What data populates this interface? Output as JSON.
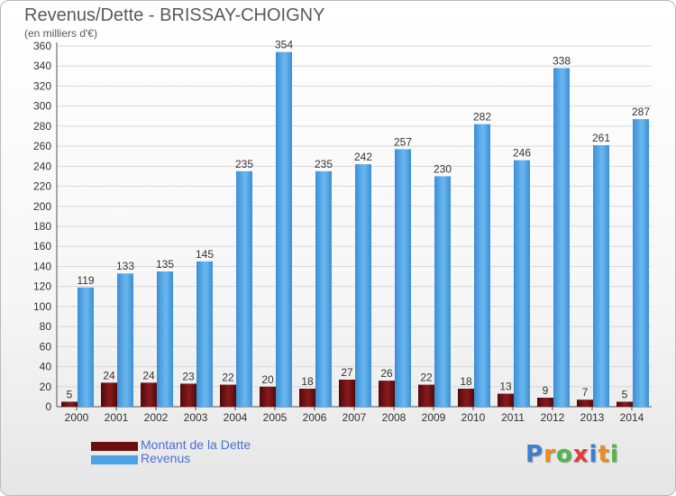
{
  "header": {
    "title": "Revenus/Dette - BRISSAY-CHOIGNY",
    "subtitle": "(en milliers d'€)"
  },
  "legend": {
    "items": [
      {
        "label": "Montant de la Dette",
        "color": "#6b0f10"
      },
      {
        "label": "Revenus",
        "color": "#4aa3e6"
      }
    ]
  },
  "logo": {
    "text": "Proxiti",
    "letters": [
      {
        "char": "P",
        "color": "#3a7fd1"
      },
      {
        "char": "r",
        "color": "#f08a1c"
      },
      {
        "char": "o",
        "color": "#4fb84a"
      },
      {
        "char": "x",
        "color": "#e23b3b"
      },
      {
        "char": "i",
        "color": "#3a7fd1"
      },
      {
        "char": "t",
        "color": "#f08a1c"
      },
      {
        "char": "i",
        "color": "#4fb84a"
      }
    ]
  },
  "chart_data": {
    "type": "bar",
    "title": "Revenus/Dette - BRISSAY-CHOIGNY",
    "subtitle": "(en milliers d'€)",
    "categories": [
      "2000",
      "2001",
      "2002",
      "2003",
      "2004",
      "2005",
      "2006",
      "2007",
      "2008",
      "2009",
      "2010",
      "2011",
      "2012",
      "2013",
      "2014"
    ],
    "series": [
      {
        "name": "Montant de la Dette",
        "color": "#6b0f10",
        "values": [
          5,
          24,
          24,
          23,
          22,
          20,
          18,
          27,
          26,
          22,
          18,
          13,
          9,
          7,
          5
        ]
      },
      {
        "name": "Revenus",
        "color": "#4aa3e6",
        "values": [
          119,
          133,
          135,
          145,
          235,
          354,
          235,
          242,
          257,
          230,
          282,
          246,
          338,
          261,
          287
        ]
      }
    ],
    "ylim": [
      0,
      360
    ],
    "yticks": [
      0,
      20,
      40,
      60,
      80,
      100,
      120,
      140,
      160,
      180,
      200,
      220,
      240,
      260,
      280,
      300,
      320,
      340,
      360
    ],
    "grid": true,
    "legend_position": "bottom-left"
  }
}
